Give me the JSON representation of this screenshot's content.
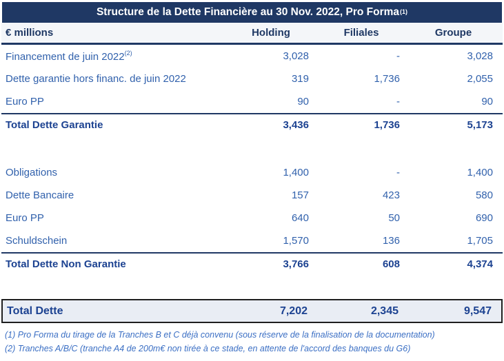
{
  "title": {
    "text": "Structure de la Dette Financière au 30 Nov. 2022, Pro Forma",
    "superscript": "(1)"
  },
  "header": {
    "unit_label": "€ millions",
    "columns": [
      "Holding",
      "Filiales",
      "Groupe"
    ]
  },
  "section_garantie": {
    "rows": [
      {
        "label": "Financement de juin 2022",
        "superscript": "(2)",
        "values": [
          "3,028",
          "-",
          "3,028"
        ]
      },
      {
        "label": "Dette garantie hors financ. de juin 2022",
        "superscript": "",
        "values": [
          "319",
          "1,736",
          "2,055"
        ]
      },
      {
        "label": "Euro PP",
        "superscript": "",
        "values": [
          "90",
          "-",
          "90"
        ]
      }
    ],
    "total": {
      "label": "Total Dette Garantie",
      "values": [
        "3,436",
        "1,736",
        "5,173"
      ]
    }
  },
  "section_non_garantie": {
    "rows": [
      {
        "label": "Obligations",
        "superscript": "",
        "values": [
          "1,400",
          "-",
          "1,400"
        ]
      },
      {
        "label": "Dette Bancaire",
        "superscript": "",
        "values": [
          "157",
          "423",
          "580"
        ]
      },
      {
        "label": "Euro PP",
        "superscript": "",
        "values": [
          "640",
          "50",
          "690"
        ]
      },
      {
        "label": "Schuldschein",
        "superscript": "",
        "values": [
          "1,570",
          "136",
          "1,705"
        ]
      }
    ],
    "total": {
      "label": "Total Dette Non Garantie",
      "values": [
        "3,766",
        "608",
        "4,374"
      ]
    }
  },
  "grand_total": {
    "label": "Total Dette",
    "values": [
      "7,202",
      "2,345",
      "9,547"
    ]
  },
  "footnotes": [
    "(1) Pro Forma du tirage de la Tranches B et C déjà convenu (sous réserve de la finalisation de la documentation)",
    "(2) Tranches A/B/C (tranche A4 de 200m€ non tirée à ce stade, en attente de l'accord des banques du G6)"
  ],
  "colors": {
    "title_bar_bg": "#1F3864",
    "title_text": "#FFFFFF",
    "header_text": "#1F3864",
    "header_bg": "#F4F6F9",
    "row_text": "#3161AC",
    "total_text": "#1C4291",
    "rule_navy": "#1F3864",
    "grand_total_bg": "#E9EDF4",
    "grand_total_border": "#1F1F1F",
    "footnote_text": "#3B6FC4"
  }
}
